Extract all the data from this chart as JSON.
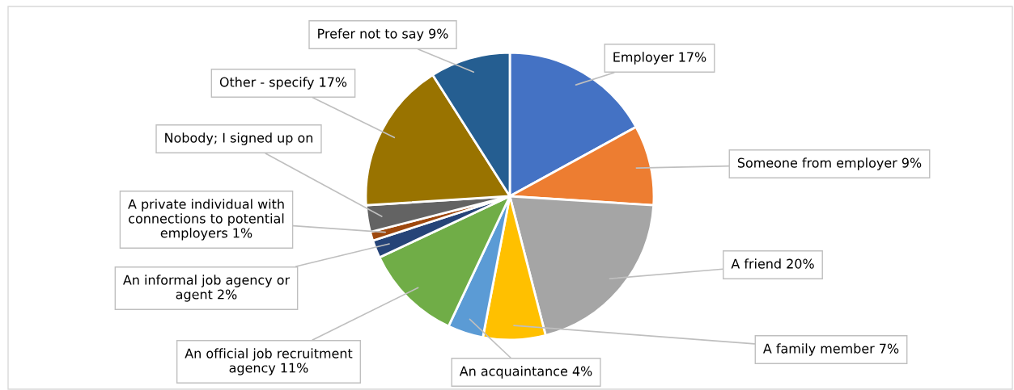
{
  "chart_data": {
    "type": "pie",
    "categories": [
      "Employer 17%",
      "Someone from employer 9%",
      "A friend 20%",
      "A family member 7%",
      "An acquaintance 4%",
      "An official job recruitment\nagency 11%",
      "An informal job agency or\nagent 2%",
      "A private individual with\nconnections to potential\nemployers 1%",
      "Nobody; I signed up on",
      "Other - specify 17%",
      "Prefer not to say 9%"
    ],
    "values": [
      17,
      9,
      20,
      7,
      4,
      11,
      2,
      1,
      3,
      17,
      9
    ],
    "colors": [
      "#4472c4",
      "#ed7d31",
      "#a5a5a5",
      "#ffc000",
      "#5b9bd5",
      "#70ad47",
      "#264478",
      "#9e480e",
      "#636363",
      "#997300",
      "#255e91"
    ],
    "legend": false
  }
}
